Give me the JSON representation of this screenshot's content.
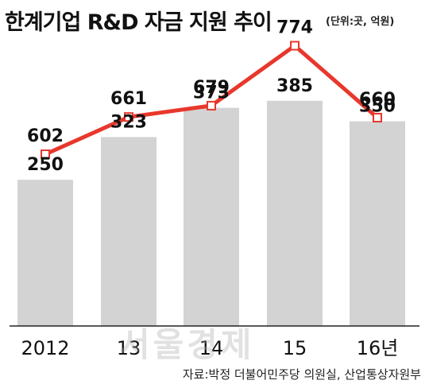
{
  "title": "한계기업 R&D 자금 지원 추이",
  "unit_note": "(단위:곳, 억원)",
  "source": "자료:박정 더불어민주당 의원실, 산업통상자원부",
  "watermark": "서울경제",
  "colors": {
    "bar": "#d3d3d3",
    "line": "#e8372c",
    "marker_fill": "#ffffff",
    "text": "#111111"
  },
  "chart_data": {
    "type": "bar+line",
    "categories": [
      "2012",
      "13",
      "14",
      "15",
      "16년"
    ],
    "series": [
      {
        "type": "bar",
        "values": [
          250,
          323,
          373,
          385,
          350
        ]
      },
      {
        "type": "line",
        "values": [
          602,
          661,
          679,
          774,
          660
        ]
      }
    ],
    "grid": false,
    "legend": "none"
  }
}
